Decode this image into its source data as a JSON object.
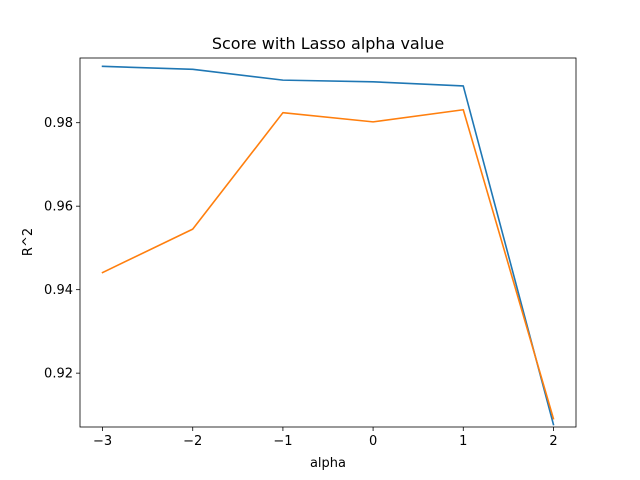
{
  "chart_data": {
    "type": "line",
    "title": "Score with Lasso alpha value",
    "xlabel": "alpha",
    "ylabel": "R^2",
    "xlim": [
      -3.25,
      2.25
    ],
    "ylim": [
      0.9071,
      0.9955
    ],
    "x_ticks": [
      -3,
      -2,
      -1,
      0,
      1,
      2
    ],
    "x_tick_labels": [
      "−3",
      "−2",
      "−1",
      "0",
      "1",
      "2"
    ],
    "y_ticks": [
      0.92,
      0.94,
      0.96,
      0.98
    ],
    "y_tick_labels": [
      "0.92",
      "0.94",
      "0.96",
      "0.98"
    ],
    "grid": false,
    "x": [
      -3,
      -2,
      -1,
      0,
      1,
      2
    ],
    "series": [
      {
        "color": "#1f77b4",
        "values": [
          0.9935,
          0.9928,
          0.9902,
          0.9898,
          0.9888,
          0.9077
        ]
      },
      {
        "color": "#ff7f0e",
        "values": [
          0.9441,
          0.9545,
          0.9824,
          0.9802,
          0.9831,
          0.9091
        ]
      }
    ]
  }
}
